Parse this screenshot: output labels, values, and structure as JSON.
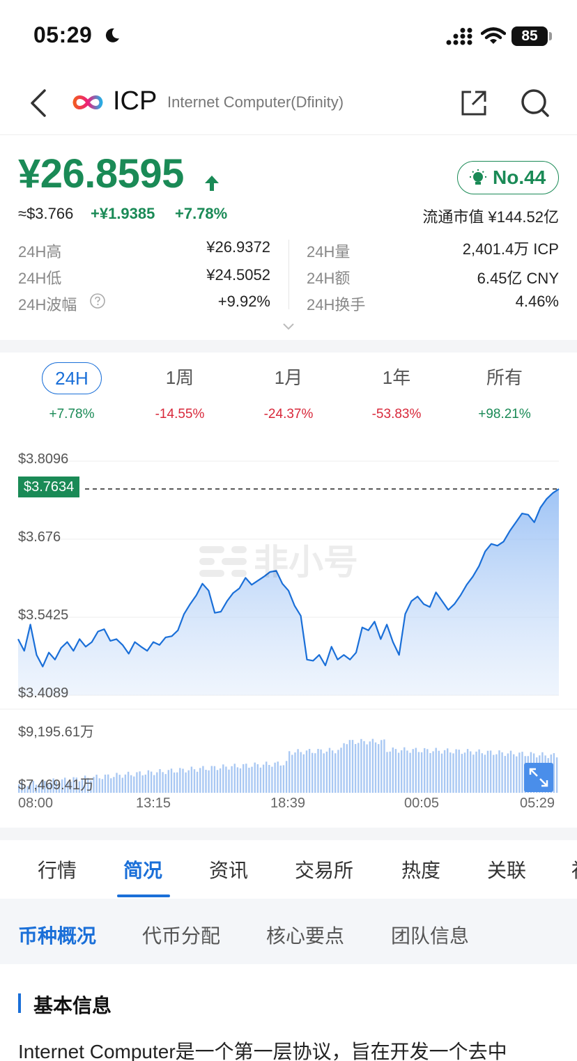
{
  "status_bar": {
    "time": "05:29",
    "battery": "85"
  },
  "header": {
    "symbol": "ICP",
    "full_name": "Internet Computer(Dfinity)"
  },
  "price": {
    "cny": "¥26.8595",
    "usd": "≈$3.766",
    "change_abs": "+¥1.9385",
    "change_pct": "+7.78%",
    "rank": "No.44",
    "market_cap": "流通市值 ¥144.52亿"
  },
  "stats": {
    "high_label": "24H高",
    "high_value": "¥26.9372",
    "low_label": "24H低",
    "low_value": "¥24.5052",
    "amplitude_label": "24H波幅",
    "amplitude_value": "+9.92%",
    "volume_label": "24H量",
    "volume_value": "2,401.4万 ICP",
    "amount_label": "24H额",
    "amount_value": "6.45亿 CNY",
    "turnover_label": "24H换手",
    "turnover_value": "4.46%"
  },
  "periods": [
    {
      "label": "24H",
      "change": "+7.78%"
    },
    {
      "label": "1周",
      "change": "-14.55%"
    },
    {
      "label": "1月",
      "change": "-24.37%"
    },
    {
      "label": "1年",
      "change": "-53.83%"
    },
    {
      "label": "所有",
      "change": "+98.21%"
    }
  ],
  "chart": {
    "y_ticks": [
      "$3.8096",
      "$3.676",
      "$3.5425",
      "$3.4089"
    ],
    "current_price": "$3.7634",
    "watermark": "非小号",
    "volume_ticks": [
      "$9,195.61万",
      "$7,469.41万"
    ],
    "x_ticks": [
      "08:00",
      "13:15",
      "18:39",
      "00:05",
      "05:29"
    ]
  },
  "chart_data": {
    "type": "line",
    "title": "",
    "xlabel": "",
    "ylabel": "",
    "x_ticks": [
      "08:00",
      "13:15",
      "18:39",
      "00:05",
      "05:29"
    ],
    "ylim": [
      3.4089,
      3.8096
    ],
    "series": [
      {
        "values": [
          3.505,
          3.485,
          3.53,
          3.478,
          3.458,
          3.482,
          3.47,
          3.49,
          3.5,
          3.485,
          3.505,
          3.492,
          3.5,
          3.518,
          3.522,
          3.502,
          3.505,
          3.495,
          3.48,
          3.5,
          3.492,
          3.485,
          3.5,
          3.495,
          3.508,
          3.51,
          3.52,
          3.548,
          3.565,
          3.58,
          3.6,
          3.588,
          3.55,
          3.552,
          3.57,
          3.584,
          3.592,
          3.61,
          3.598,
          3.605,
          3.612,
          3.62,
          3.622,
          3.6,
          3.588,
          3.562,
          3.545,
          3.47,
          3.468,
          3.478,
          3.46,
          3.492,
          3.47,
          3.478,
          3.47,
          3.482,
          3.525,
          3.52,
          3.535,
          3.505,
          3.53,
          3.5,
          3.478,
          3.548,
          3.57,
          3.578,
          3.565,
          3.56,
          3.585,
          3.57,
          3.555,
          3.565,
          3.58,
          3.598,
          3.612,
          3.63,
          3.655,
          3.668,
          3.665,
          3.672,
          3.69,
          3.705,
          3.72,
          3.718,
          3.705,
          3.73,
          3.745,
          3.755,
          3.762
        ]
      }
    ],
    "volume_ylim": [
      "$7,469.41万",
      "$9,195.61万"
    ]
  },
  "main_tabs": [
    "行情",
    "简况",
    "资讯",
    "交易所",
    "热度",
    "关联",
    "社"
  ],
  "sub_tabs": [
    "币种概况",
    "代币分配",
    "核心要点",
    "团队信息"
  ],
  "section": {
    "heading": "基本信息",
    "intro": "Internet Computer是一个第一层协议，旨在开发一个去中"
  }
}
